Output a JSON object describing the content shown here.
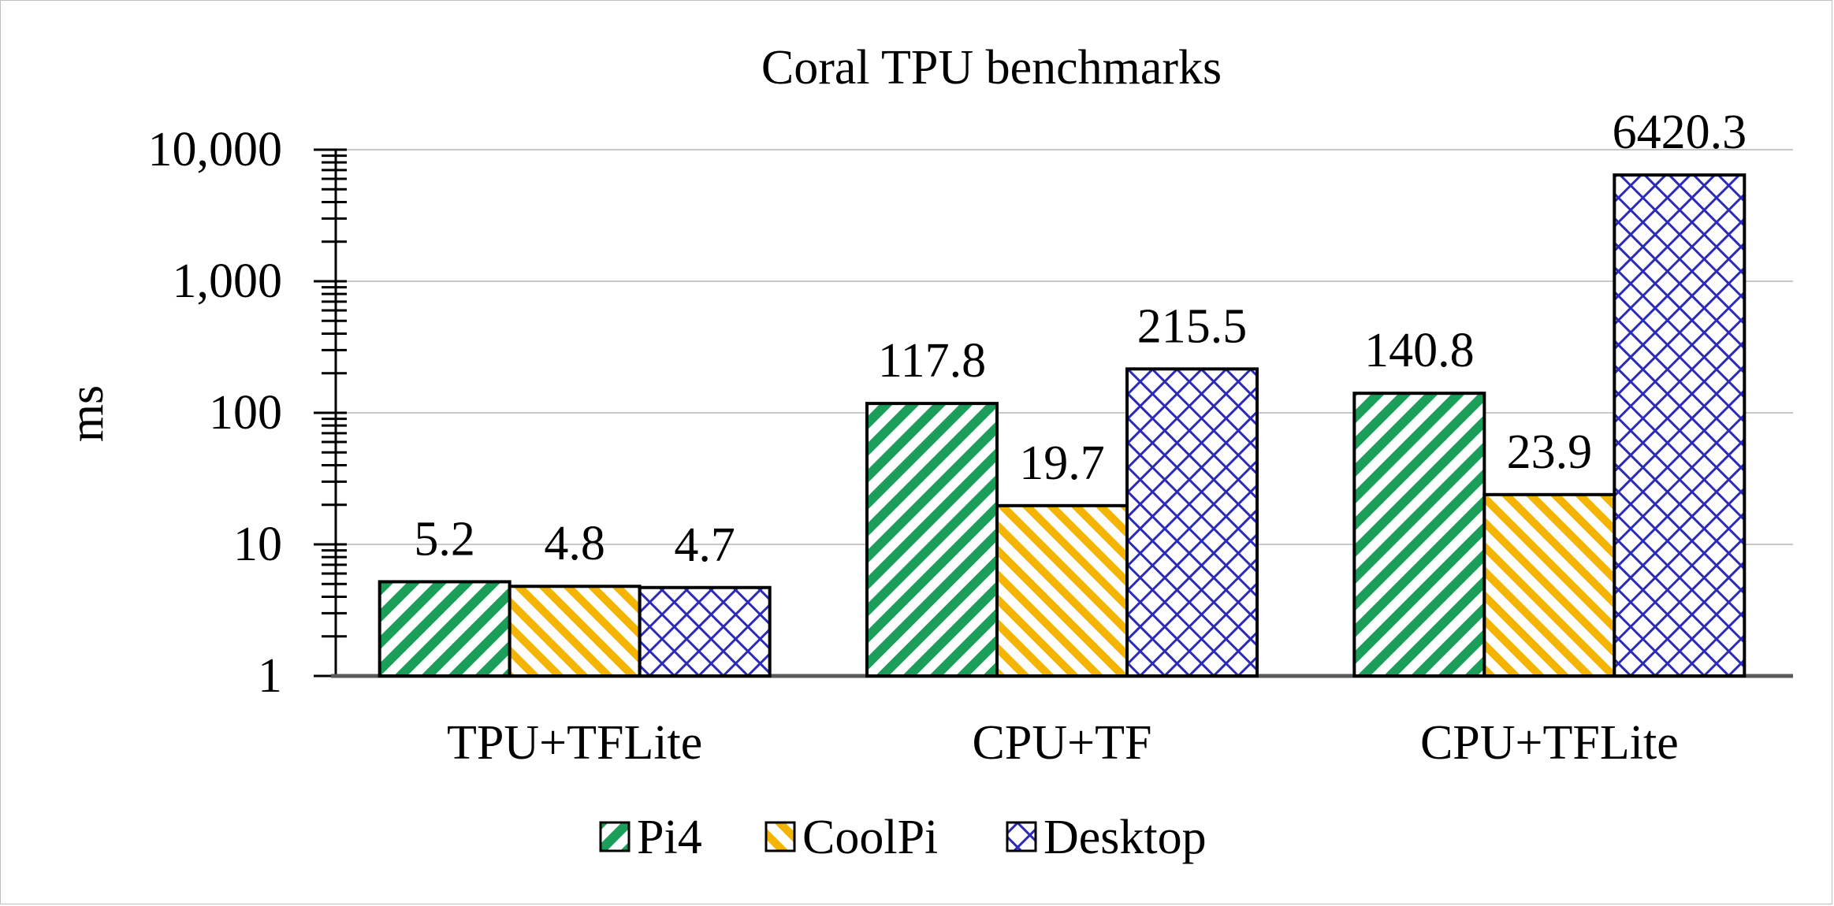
{
  "chart_data": {
    "type": "bar",
    "title": "Coral TPU benchmarks",
    "ylabel": "ms",
    "xlabel": "",
    "y_scale": "log",
    "ylim": [
      1,
      10000
    ],
    "y_ticks": [
      {
        "value": 1,
        "label": "1"
      },
      {
        "value": 10,
        "label": "10"
      },
      {
        "value": 100,
        "label": "100"
      },
      {
        "value": 1000,
        "label": "1,000"
      },
      {
        "value": 10000,
        "label": "10,000"
      }
    ],
    "grid": true,
    "legend_position": "bottom",
    "categories": [
      "TPU+TFLite",
      "CPU+TF",
      "CPU+TFLite"
    ],
    "series": [
      {
        "name": "Pi4",
        "values": [
          5.2,
          117.8,
          140.8
        ],
        "labels": [
          "5.2",
          "117.8",
          "140.8"
        ],
        "color": "#1a9e5a",
        "pattern": "diagonal-stripes-forward"
      },
      {
        "name": "CoolPi",
        "values": [
          4.8,
          19.7,
          23.9
        ],
        "labels": [
          "4.8",
          "19.7",
          "23.9"
        ],
        "color": "#f5b400",
        "pattern": "diagonal-stripes-backward"
      },
      {
        "name": "Desktop",
        "values": [
          4.7,
          215.5,
          6420.3
        ],
        "labels": [
          "4.7",
          "215.5",
          "6420.3"
        ],
        "color": "#2b2bb8",
        "pattern": "crosshatch"
      }
    ]
  }
}
